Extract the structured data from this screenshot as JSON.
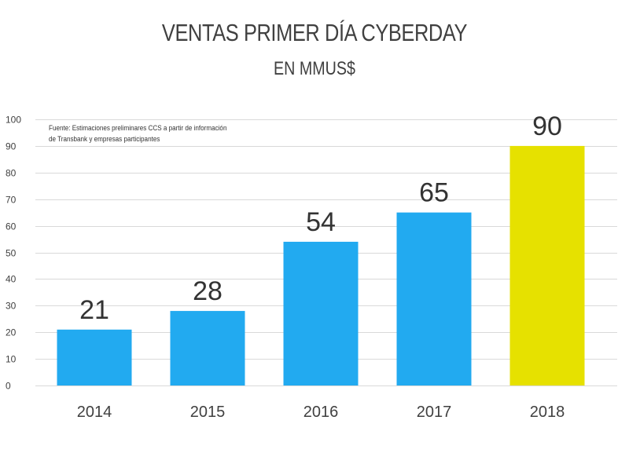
{
  "chart_data": {
    "type": "bar",
    "title": "VENTAS PRIMER DÍA CYBERDAY",
    "subtitle": "EN MMUS$",
    "source_note": "Fuente: Estimaciones preliminares CCS a partir de información de Transbank y empresas participantes",
    "categories": [
      "2014",
      "2015",
      "2016",
      "2017",
      "2018"
    ],
    "values": [
      21,
      28,
      54,
      65,
      90
    ],
    "data_labels": [
      "21",
      "28",
      "54",
      "65",
      "90"
    ],
    "bar_colors": [
      "#22aaf0",
      "#22aaf0",
      "#22aaf0",
      "#22aaf0",
      "#e6e100"
    ],
    "ylim": [
      0,
      100
    ],
    "yticks": [
      "0",
      "10",
      "20",
      "30",
      "40",
      "50",
      "60",
      "70",
      "80",
      "90",
      "100"
    ],
    "grid": true,
    "legend": "none",
    "xlabel": "",
    "ylabel": ""
  },
  "colors": {
    "bar": "#22aaf0",
    "highlight_bar": "#e6e100",
    "grid": "#d9d9d9",
    "text": "#404040"
  }
}
